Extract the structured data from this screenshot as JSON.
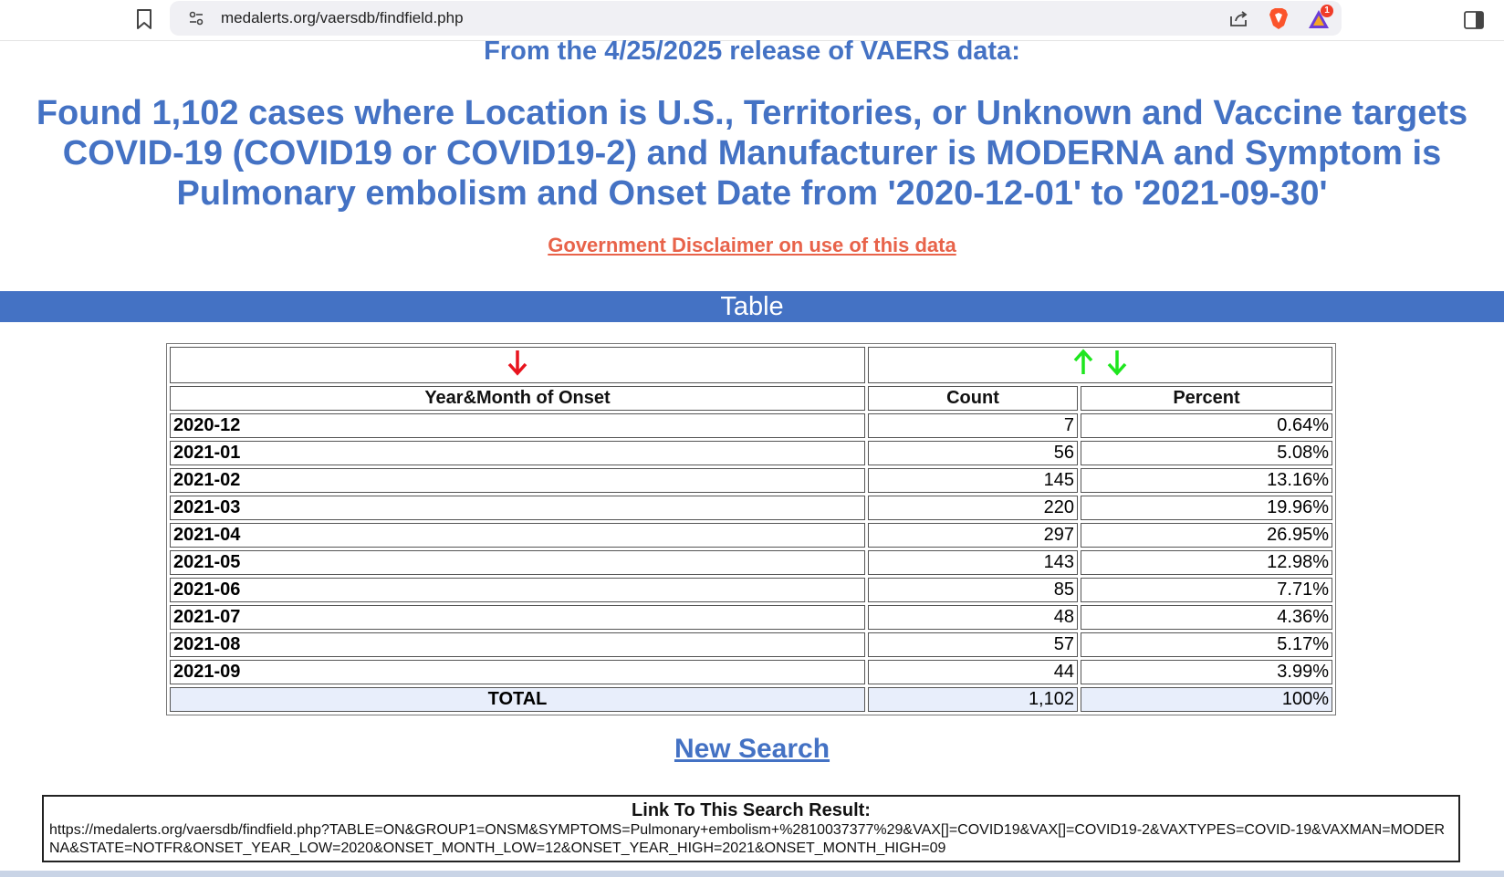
{
  "browser": {
    "url": "medalerts.org/vaersdb/findfield.php",
    "rewards_badge_count": "1"
  },
  "page": {
    "release_line": "From the 4/25/2025 release of VAERS data:",
    "found_title": "Found 1,102 cases where Location is U.S., Territories, or Unknown and Vaccine targets COVID-19 (COVID19 or COVID19-2) and Manufacturer is MODERNA and Symptom is Pulmonary embolism and Onset Date from '2020-12-01' to '2021-09-30'",
    "disclaimer_link": "Government Disclaimer on use of this data",
    "section_title": "Table",
    "new_search_link": "New Search"
  },
  "table": {
    "headers": [
      "Year&Month of Onset",
      "Count",
      "Percent"
    ],
    "rows": [
      {
        "label": "2020-12",
        "count": "7",
        "percent": "0.64%"
      },
      {
        "label": "2021-01",
        "count": "56",
        "percent": "5.08%"
      },
      {
        "label": "2021-02",
        "count": "145",
        "percent": "13.16%"
      },
      {
        "label": "2021-03",
        "count": "220",
        "percent": "19.96%"
      },
      {
        "label": "2021-04",
        "count": "297",
        "percent": "26.95%"
      },
      {
        "label": "2021-05",
        "count": "143",
        "percent": "12.98%"
      },
      {
        "label": "2021-06",
        "count": "85",
        "percent": "7.71%"
      },
      {
        "label": "2021-07",
        "count": "48",
        "percent": "4.36%"
      },
      {
        "label": "2021-08",
        "count": "57",
        "percent": "5.17%"
      },
      {
        "label": "2021-09",
        "count": "44",
        "percent": "3.99%"
      }
    ],
    "total": {
      "label": "TOTAL",
      "count": "1,102",
      "percent": "100%"
    }
  },
  "link_box": {
    "title": "Link To This Search Result:",
    "url": "https://medalerts.org/vaersdb/findfield.php?TABLE=ON&GROUP1=ONSM&SYMPTOMS=Pulmonary+embolism+%2810037377%29&VAX[]=COVID19&VAX[]=COVID19-2&VAXTYPES=COVID-19&VAXMAN=MODERNA&STATE=NOTFR&ONSET_YEAR_LOW=2020&ONSET_MONTH_LOW=12&ONSET_YEAR_HIGH=2021&ONSET_MONTH_HIGH=09"
  },
  "colors": {
    "title_blue": "#4472c4",
    "disclaimer_red": "#e8634a",
    "sort_active_red": "#e8141e",
    "sort_inactive_green": "#1ee61e",
    "total_row_bg": "#e8eefb"
  }
}
